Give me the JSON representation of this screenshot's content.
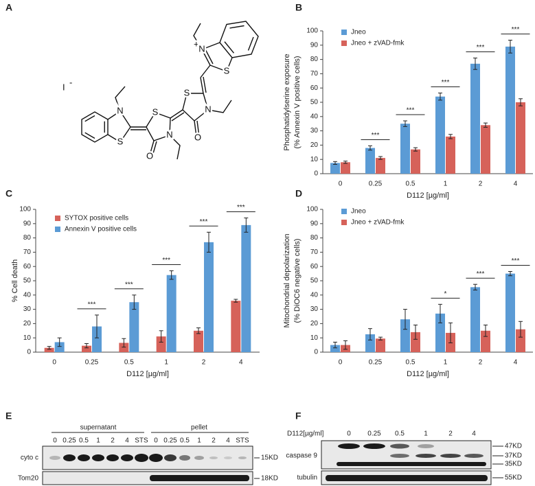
{
  "panel_labels": [
    "A",
    "B",
    "C",
    "D",
    "E",
    "F"
  ],
  "structure": {
    "counterion": "I",
    "counterion_charge": "-",
    "cation_charge": "+",
    "atoms": [
      "N",
      "S",
      "S",
      "N",
      "O",
      "S",
      "N",
      "O",
      "N",
      "S"
    ]
  },
  "chart_data": [
    {
      "type": "bar",
      "categories": [
        "0",
        "0.25",
        "0.5",
        "1",
        "2",
        "4"
      ],
      "series": [
        {
          "name": "Jneo",
          "color": "#5b9bd5",
          "values": [
            7.5,
            18,
            35,
            54,
            77,
            89
          ],
          "errors": [
            1,
            1.5,
            2,
            2.5,
            4,
            4.5
          ]
        },
        {
          "name": "Jneo + zVAD-fmk",
          "color": "#d6625a",
          "values": [
            8,
            11,
            17,
            26,
            34,
            50
          ],
          "errors": [
            0.8,
            1,
            1.2,
            1.5,
            1.5,
            2.5
          ]
        }
      ],
      "significance": [
        null,
        "***",
        "***",
        "***",
        "***",
        "***"
      ],
      "ylim": [
        0,
        100
      ],
      "yticks": [
        0,
        10,
        20,
        30,
        40,
        50,
        60,
        70,
        80,
        90,
        100
      ],
      "ylabel": [
        "Phosphatidylserine exposure",
        "(% Annexin V positive cells)"
      ],
      "xlabel": "D112 [µg/ml]",
      "legend": "upper left"
    },
    {
      "type": "bar",
      "categories": [
        "0",
        "0.25",
        "0.5",
        "1",
        "2",
        "4"
      ],
      "series": [
        {
          "name": "SYTOX positive cells",
          "color": "#d6625a",
          "values": [
            3,
            4.5,
            6.5,
            11,
            15,
            36
          ],
          "errors": [
            1,
            1.5,
            3,
            4,
            2,
            1
          ]
        },
        {
          "name": "Annexin V positive cells",
          "color": "#5b9bd5",
          "values": [
            7,
            18,
            35,
            54,
            77,
            89
          ],
          "errors": [
            3,
            8,
            5,
            3,
            7,
            5
          ]
        }
      ],
      "significance": [
        null,
        "***",
        "***",
        "***",
        "***",
        "***"
      ],
      "ylim": [
        0,
        100
      ],
      "yticks": [
        0,
        10,
        20,
        30,
        40,
        50,
        60,
        70,
        80,
        90,
        100
      ],
      "ylabel": [
        "% Cell death"
      ],
      "xlabel": "D112 [µg/ml]",
      "legend": "upper left"
    },
    {
      "type": "bar",
      "categories": [
        "0",
        "0.25",
        "0.5",
        "1",
        "2",
        "4"
      ],
      "series": [
        {
          "name": "Jneo",
          "color": "#5b9bd5",
          "values": [
            5,
            12.5,
            23,
            27,
            45.5,
            55
          ],
          "errors": [
            2,
            4,
            7,
            6.5,
            2,
            1.5
          ]
        },
        {
          "name": "Jneo + zVAD-fmk",
          "color": "#d6625a",
          "values": [
            5,
            9.5,
            14,
            13.5,
            15,
            16
          ],
          "errors": [
            3,
            1,
            5,
            7,
            4,
            5.5
          ]
        }
      ],
      "significance": [
        null,
        null,
        null,
        "*",
        "***",
        "***"
      ],
      "ylim": [
        0,
        100
      ],
      "yticks": [
        0,
        10,
        20,
        30,
        40,
        50,
        60,
        70,
        80,
        90,
        100
      ],
      "ylabel": [
        "Mitochondrial depolarization",
        "(% DiOC6 negative cells)"
      ],
      "xlabel": "D112 [µg/ml]",
      "legend": "upper left"
    }
  ],
  "blot_e": {
    "groups": [
      "supernatant",
      "pellet"
    ],
    "lanes": [
      "0",
      "0.25",
      "0.5",
      "1",
      "2",
      "4",
      "STS",
      "0",
      "0.25",
      "0.5",
      "1",
      "2",
      "4",
      "STS"
    ],
    "rows": [
      "cyto c",
      "Tom20"
    ],
    "markers": [
      "15KD",
      "18KD"
    ]
  },
  "blot_f": {
    "treatment_label": "D112[µg/ml]",
    "lanes": [
      "0",
      "0.25",
      "0.5",
      "1",
      "2",
      "4"
    ],
    "rows": [
      "caspase 9",
      "tubulin"
    ],
    "markers": [
      "47KD",
      "37KD",
      "35KD",
      "55KD"
    ]
  }
}
